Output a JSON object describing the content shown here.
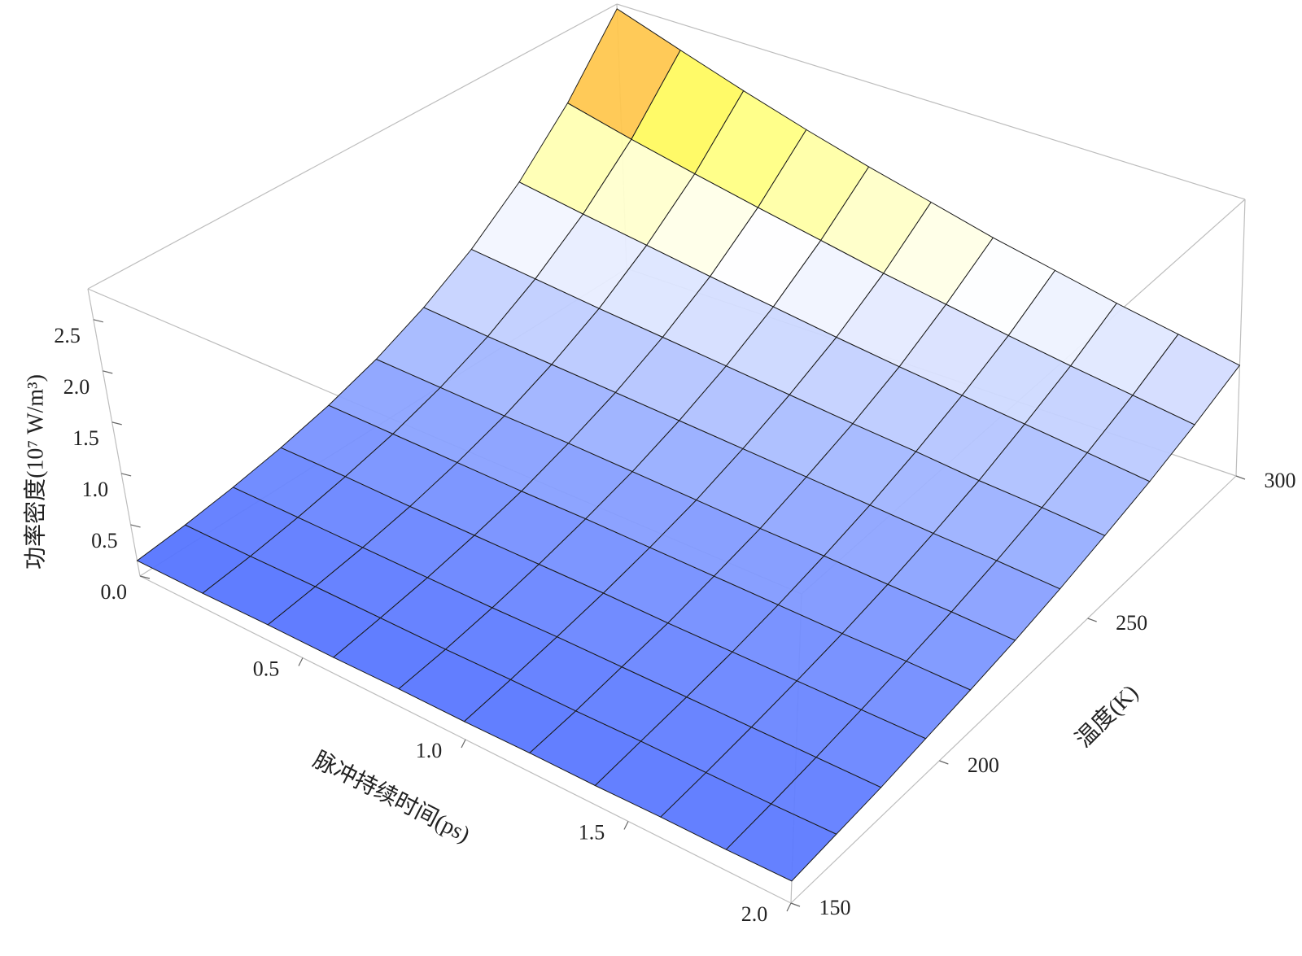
{
  "chart_data": {
    "type": "surface",
    "xlabel": "脉冲持续时间(ps)",
    "ylabel": "温度(K)",
    "zlabel": "功率密度(10⁷ W/m³)",
    "x": [
      0,
      0.2,
      0.4,
      0.6,
      0.8,
      1.0,
      1.2,
      1.4,
      1.6,
      1.8,
      2.0
    ],
    "y": [
      150,
      165,
      180,
      195,
      210,
      225,
      240,
      255,
      270,
      285,
      300
    ],
    "z": [
      [
        0.15,
        0.2,
        0.27,
        0.36,
        0.48,
        0.64,
        0.86,
        1.15,
        1.54,
        2.06,
        2.75
      ],
      [
        0.15,
        0.2,
        0.27,
        0.36,
        0.47,
        0.62,
        0.82,
        1.09,
        1.44,
        1.9,
        2.52
      ],
      [
        0.16,
        0.21,
        0.27,
        0.35,
        0.46,
        0.6,
        0.79,
        1.03,
        1.35,
        1.76,
        2.3
      ],
      [
        0.16,
        0.21,
        0.27,
        0.35,
        0.45,
        0.59,
        0.76,
        0.98,
        1.26,
        1.63,
        2.1
      ],
      [
        0.17,
        0.21,
        0.27,
        0.35,
        0.45,
        0.57,
        0.73,
        0.93,
        1.18,
        1.51,
        1.92
      ],
      [
        0.17,
        0.22,
        0.28,
        0.35,
        0.44,
        0.55,
        0.7,
        0.88,
        1.1,
        1.39,
        1.76
      ],
      [
        0.18,
        0.22,
        0.28,
        0.34,
        0.43,
        0.53,
        0.67,
        0.83,
        1.03,
        1.29,
        1.6
      ],
      [
        0.18,
        0.23,
        0.28,
        0.34,
        0.42,
        0.52,
        0.64,
        0.79,
        0.97,
        1.19,
        1.47
      ],
      [
        0.19,
        0.23,
        0.28,
        0.34,
        0.41,
        0.5,
        0.61,
        0.74,
        0.91,
        1.1,
        1.34
      ],
      [
        0.19,
        0.23,
        0.28,
        0.34,
        0.41,
        0.49,
        0.59,
        0.71,
        0.85,
        1.02,
        1.23
      ],
      [
        0.2,
        0.24,
        0.28,
        0.34,
        0.4,
        0.47,
        0.56,
        0.67,
        0.79,
        0.94,
        1.12
      ]
    ],
    "xlim": [
      0,
      2
    ],
    "ylim": [
      150,
      300
    ],
    "zlim": [
      0,
      2.8
    ],
    "xticks": [
      {
        "value": 0.5,
        "label": "0.5"
      },
      {
        "value": 1,
        "label": "1.0"
      },
      {
        "value": 1.5,
        "label": "1.5"
      },
      {
        "value": 2,
        "label": "2.0"
      }
    ],
    "yticks": [
      150,
      200,
      250,
      300
    ],
    "zticks": [
      {
        "value": 0,
        "label": "0.0"
      },
      0.5,
      {
        "value": 1,
        "label": "1.0"
      },
      1.5,
      {
        "value": 2,
        "label": "2.0"
      },
      2.5
    ],
    "colormap": [
      "#3a5cff",
      "#9fb4ff",
      "#ffffff",
      "#ffff5e",
      "#ff3f1e"
    ]
  }
}
